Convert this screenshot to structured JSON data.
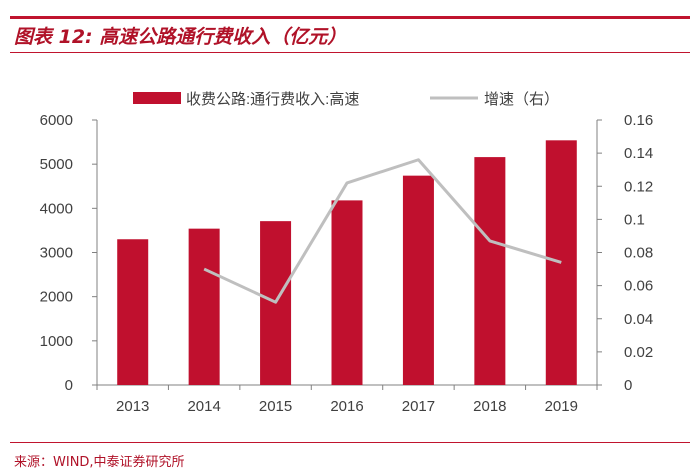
{
  "title": "图表 12:  高速公路通行费收入（亿元）",
  "source": "来源：WIND,中泰证券研究所",
  "colors": {
    "bar": "#c0102e",
    "line": "#bfbfbf",
    "axis": "#808080",
    "text": "#404040",
    "accent": "#c0142e"
  },
  "chart_data": {
    "type": "bar",
    "categories": [
      "2013",
      "2014",
      "2015",
      "2016",
      "2017",
      "2018",
      "2019"
    ],
    "series": [
      {
        "name": "收费公路:通行费收入:高速",
        "type": "bar",
        "axis": "left",
        "values": [
          3300,
          3540,
          3710,
          4180,
          4740,
          5160,
          5540
        ]
      },
      {
        "name": "增速（右）",
        "type": "line",
        "axis": "right",
        "values": [
          null,
          0.07,
          0.05,
          0.122,
          0.136,
          0.087,
          0.074
        ]
      }
    ],
    "y_left": {
      "min": 0,
      "max": 6000,
      "ticks": [
        "0",
        "1000",
        "2000",
        "3000",
        "4000",
        "5000",
        "6000"
      ]
    },
    "y_right": {
      "min": 0,
      "max": 0.16,
      "ticks": [
        "0",
        "0.02",
        "0.04",
        "0.06",
        "0.08",
        "0.1",
        "0.12",
        "0.14",
        "0.16"
      ]
    },
    "legend_position": "top-center"
  }
}
